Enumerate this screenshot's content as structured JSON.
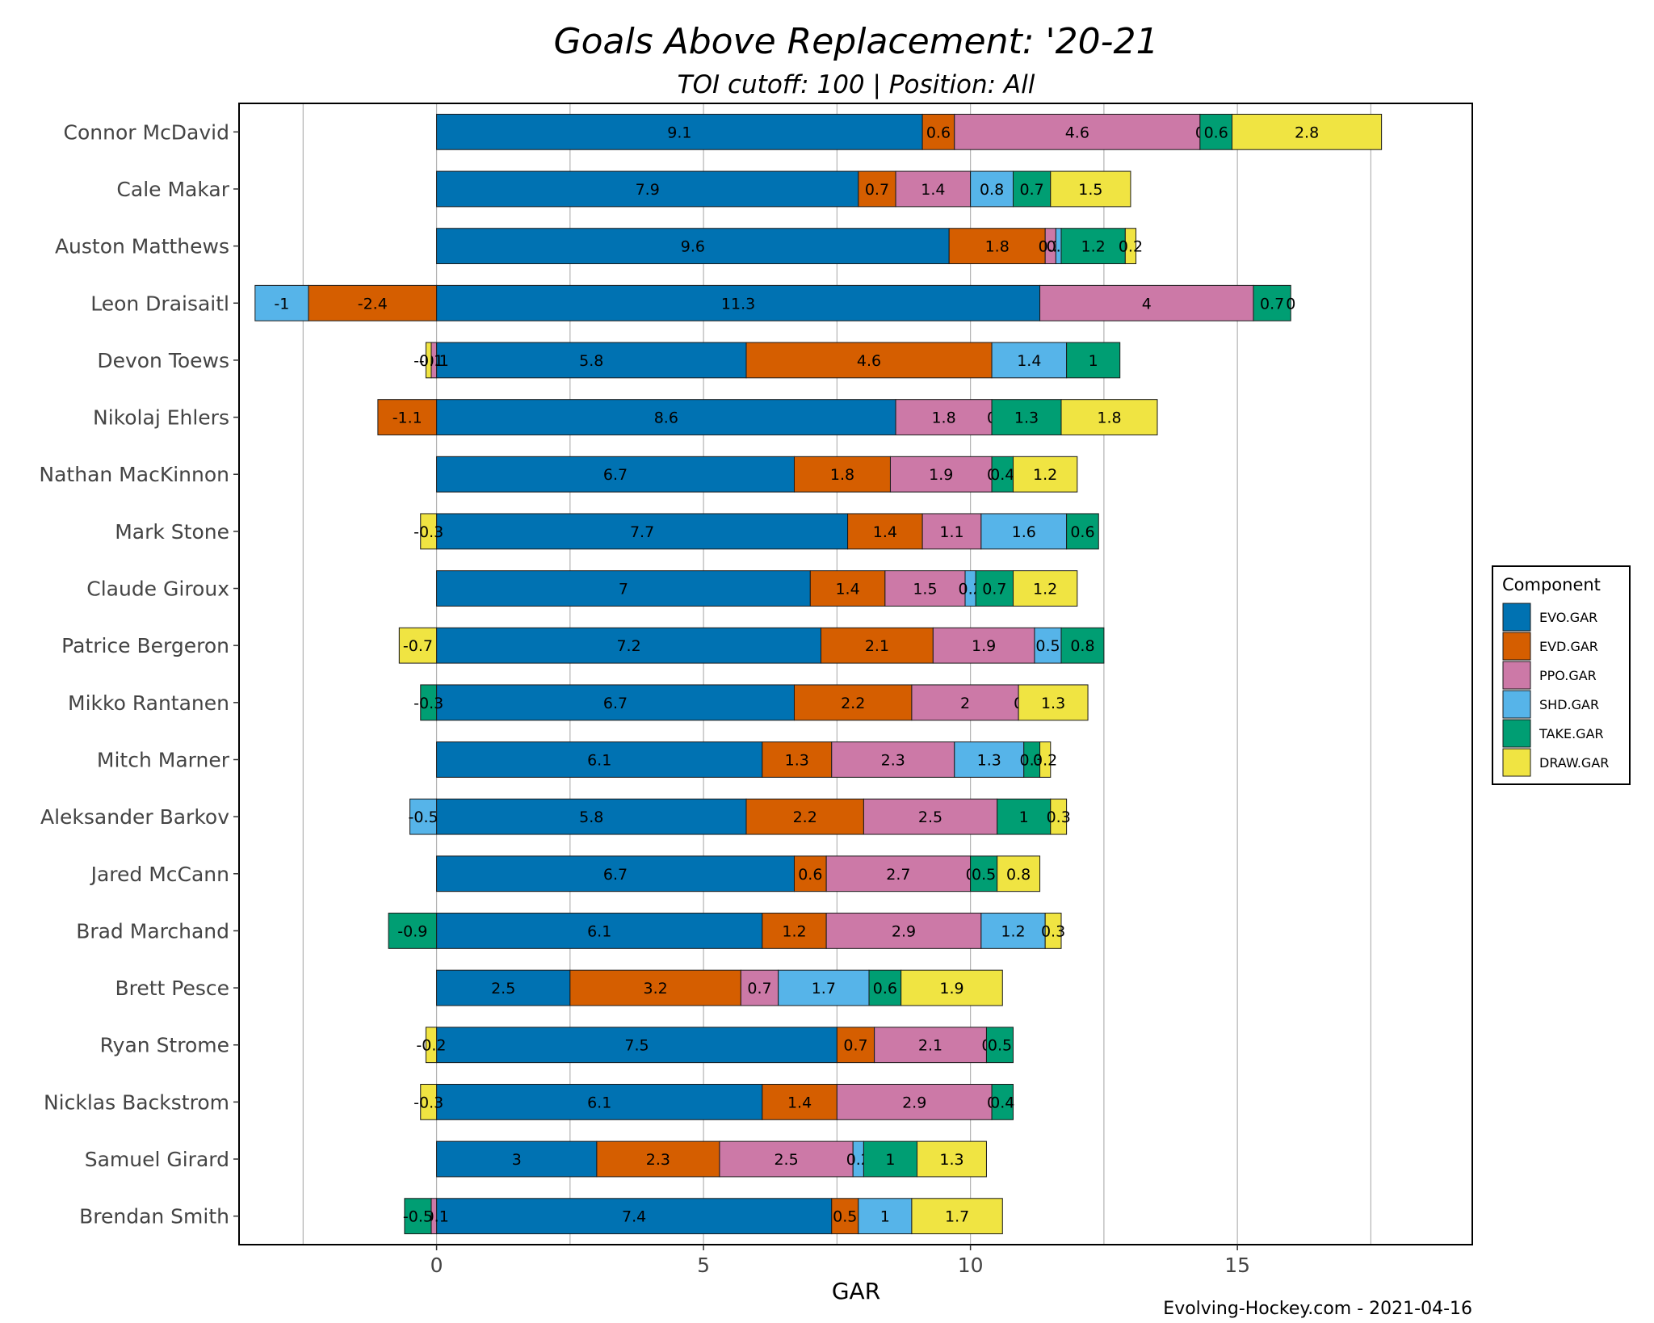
{
  "chart_data": {
    "type": "bar",
    "orientation": "horizontal",
    "stacked": true,
    "title": "Goals Above Replacement: '20-21",
    "subtitle": "TOI cutoff: 100 | Position: All",
    "xlabel": "GAR",
    "ylabel": "",
    "xlim": [
      -3.7,
      19.4
    ],
    "xticks": [
      0,
      5,
      10,
      15
    ],
    "grid": true,
    "legend": {
      "title": "Component",
      "placement": "right"
    },
    "caption": "Evolving-Hockey.com - 2021-04-16",
    "colors": {
      "EVO.GAR": "#0072B2",
      "EVD.GAR": "#D55E00",
      "PPO.GAR": "#CC79A7",
      "SHD.GAR": "#56B4E9",
      "TAKE.GAR": "#009E73",
      "DRAW.GAR": "#F0E442"
    },
    "categories": [
      "Connor McDavid",
      "Cale Makar",
      "Auston Matthews",
      "Leon Draisaitl",
      "Devon Toews",
      "Nikolaj Ehlers",
      "Nathan MacKinnon",
      "Mark Stone",
      "Claude Giroux",
      "Patrice Bergeron",
      "Mikko Rantanen",
      "Mitch Marner",
      "Aleksander Barkov",
      "Jared McCann",
      "Brad Marchand",
      "Brett Pesce",
      "Ryan Strome",
      "Nicklas Backstrom",
      "Samuel Girard",
      "Brendan Smith"
    ],
    "series": [
      {
        "name": "EVO.GAR",
        "values": [
          9.1,
          7.9,
          9.6,
          11.3,
          5.8,
          8.6,
          6.7,
          7.7,
          7,
          7.2,
          6.7,
          6.1,
          5.8,
          6.7,
          6.1,
          2.5,
          7.5,
          6.1,
          3,
          7.4
        ]
      },
      {
        "name": "EVD.GAR",
        "values": [
          0.6,
          0.7,
          1.8,
          -2.4,
          4.6,
          -1.1,
          1.8,
          1.4,
          1.4,
          2.1,
          2.2,
          1.3,
          2.2,
          0.6,
          1.2,
          3.2,
          0.7,
          1.4,
          2.3,
          0.5
        ]
      },
      {
        "name": "PPO.GAR",
        "values": [
          4.6,
          1.4,
          0.2,
          4,
          -0.1,
          1.8,
          1.9,
          1.1,
          1.5,
          1.9,
          2,
          2.3,
          2.5,
          2.7,
          2.9,
          0.7,
          2.1,
          2.9,
          2.5,
          -0.1
        ]
      },
      {
        "name": "SHD.GAR",
        "values": [
          0,
          0.8,
          0.1,
          -1,
          1.4,
          0,
          0,
          1.6,
          0.2,
          0.5,
          0,
          1.3,
          -0.5,
          0,
          1.2,
          1.7,
          0,
          0,
          0.2,
          1
        ]
      },
      {
        "name": "TAKE.GAR",
        "values": [
          0.6,
          0.7,
          1.2,
          0.7,
          1,
          1.3,
          0.4,
          0.6,
          0.7,
          0.8,
          -0.3,
          0.3,
          1,
          0.5,
          -0.9,
          0.6,
          0.5,
          0.4,
          1,
          -0.5
        ]
      },
      {
        "name": "DRAW.GAR",
        "values": [
          2.8,
          1.5,
          0.2,
          0,
          -0.1,
          1.8,
          1.2,
          -0.3,
          1.2,
          -0.7,
          1.3,
          0.2,
          0.3,
          0.8,
          0.3,
          1.9,
          -0.2,
          -0.3,
          1.3,
          1.7
        ]
      }
    ]
  }
}
